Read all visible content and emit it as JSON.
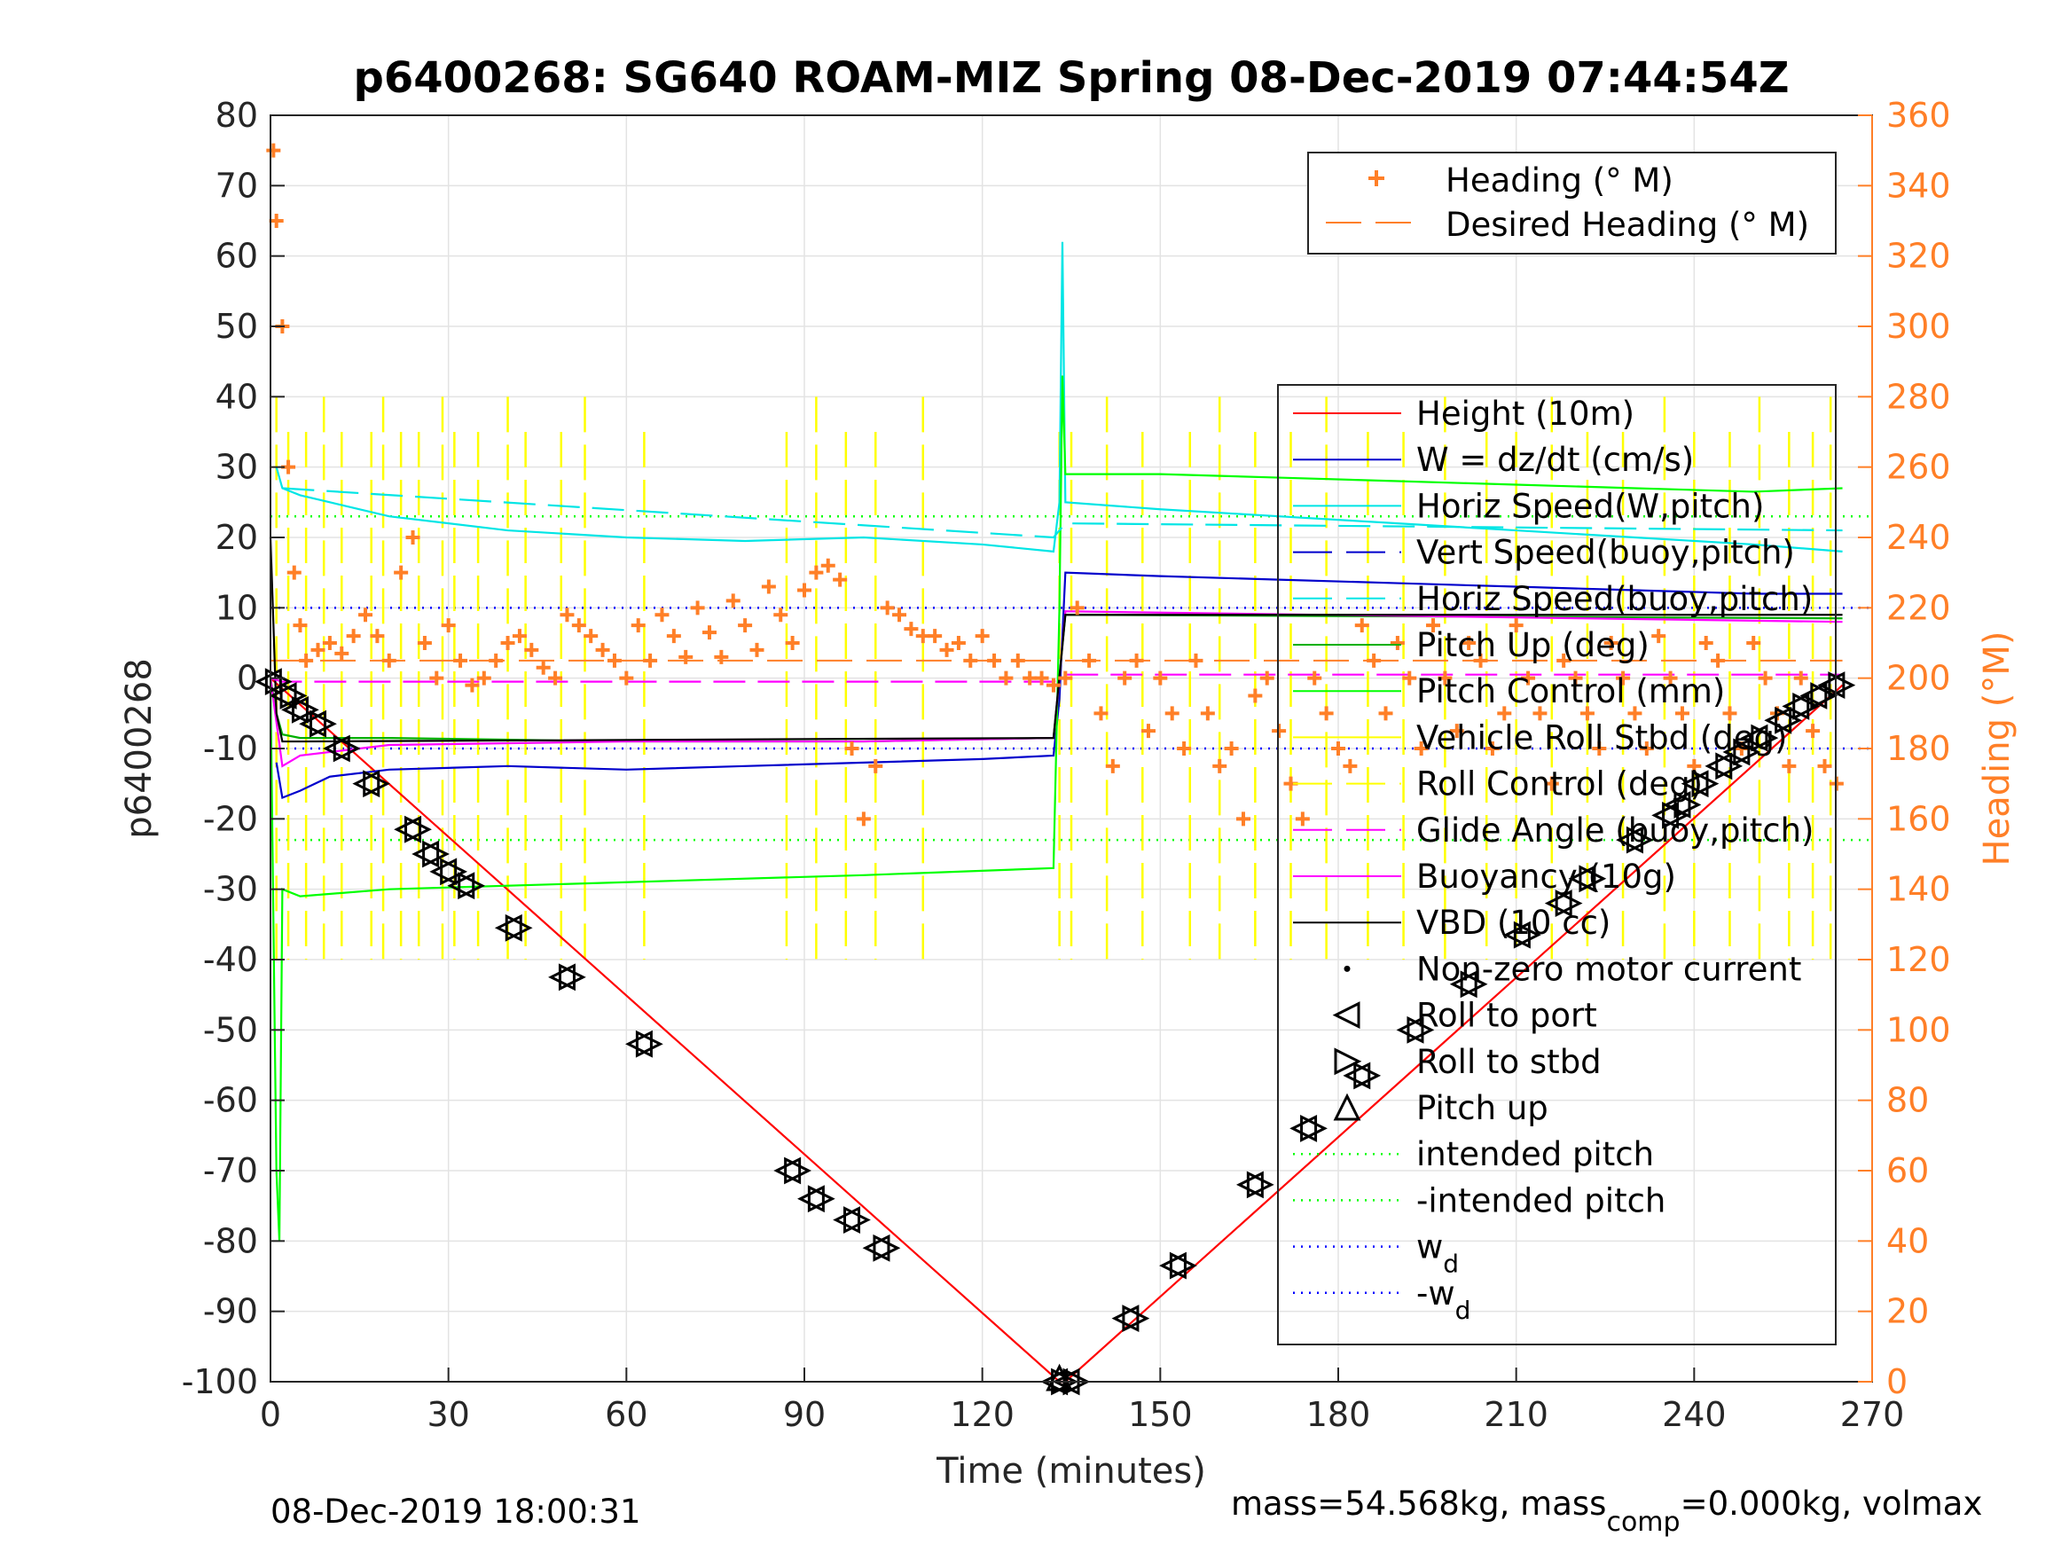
{
  "chart_data": {
    "type": "line",
    "title": "p6400268: SG640 ROAM-MIZ Spring 08-Dec-2019 07:44:54Z",
    "xlabel": "Time (minutes)",
    "ylabel": "p6400268",
    "y2label": "Heading (°M)",
    "xlim": [
      0,
      270
    ],
    "ylim": [
      -100,
      80
    ],
    "y2lim": [
      0,
      360
    ],
    "xticks": [
      "0",
      "30",
      "60",
      "90",
      "120",
      "150",
      "180",
      "210",
      "240",
      "270"
    ],
    "yticks": [
      "80",
      "70",
      "60",
      "50",
      "40",
      "30",
      "20",
      "10",
      "0",
      "-10",
      "-20",
      "-30",
      "-40",
      "-50",
      "-60",
      "-70",
      "-80",
      "-90",
      "-100"
    ],
    "y2ticks": [
      "360",
      "340",
      "320",
      "300",
      "280",
      "260",
      "240",
      "220",
      "200",
      "180",
      "160",
      "140",
      "120",
      "100",
      "80",
      "60",
      "40",
      "20",
      "0"
    ],
    "grid": true,
    "legend_top": [
      {
        "name": "Heading (° M)",
        "color": "#ff7f27",
        "style": "plus"
      },
      {
        "name": "Desired Heading (° M)",
        "color": "#ff7f27",
        "style": "dash"
      }
    ],
    "legend_main": [
      {
        "name": "Height (10m)",
        "color": "#ff0000",
        "style": "solid"
      },
      {
        "name": "W = dz/dt (cm/s)",
        "color": "#0000cc",
        "style": "solid"
      },
      {
        "name": "Horiz Speed(W,pitch)",
        "color": "#00e5e5",
        "style": "solid"
      },
      {
        "name": "Vert Speed(buoy,pitch)",
        "color": "#0000cc",
        "style": "dash"
      },
      {
        "name": "Horiz Speed(buoy,pitch)",
        "color": "#00e5e5",
        "style": "dash"
      },
      {
        "name": "Pitch Up (deg)",
        "color": "#00b000",
        "style": "solid"
      },
      {
        "name": "Pitch Control (mm)",
        "color": "#00ff00",
        "style": "solid"
      },
      {
        "name": "Vehicle Roll Stbd (deg)",
        "color": "#ffff00",
        "style": "solid"
      },
      {
        "name": "Roll Control (deg)",
        "color": "#ffff00",
        "style": "dash"
      },
      {
        "name": "Glide Angle (buoy,pitch)",
        "color": "#ff00ff",
        "style": "dash"
      },
      {
        "name": "Buoyancy (10g)",
        "color": "#ff00ff",
        "style": "solid"
      },
      {
        "name": "VBD (10 cc)",
        "color": "#000000",
        "style": "solid"
      },
      {
        "name": "Non-zero motor current",
        "color": "#000000",
        "style": "dot"
      },
      {
        "name": "Roll to port",
        "color": "#000000",
        "style": "triangle-left"
      },
      {
        "name": "Roll to stbd",
        "color": "#000000",
        "style": "triangle-right"
      },
      {
        "name": "Pitch up",
        "color": "#000000",
        "style": "triangle-up"
      },
      {
        "name": "intended pitch",
        "color": "#00ff00",
        "style": "dotted"
      },
      {
        "name": "-intended pitch",
        "color": "#00ff00",
        "style": "dotted"
      },
      {
        "name": "w",
        "sub": "d",
        "color": "#0000ff",
        "style": "dotted"
      },
      {
        "name": "-w",
        "sub": "d",
        "color": "#0000ff",
        "style": "dotted"
      }
    ],
    "series": [
      {
        "name": "Height (10m)",
        "color": "#ff0000",
        "x": [
          0,
          133,
          134,
          265
        ],
        "y": [
          0,
          -100,
          -100,
          -1
        ]
      },
      {
        "name": "W = dz/dt (cm/s)",
        "color": "#0000cc",
        "x": [
          1,
          2,
          5,
          10,
          20,
          40,
          60,
          80,
          100,
          120,
          132,
          133,
          134,
          150,
          170,
          190,
          210,
          230,
          250,
          265
        ],
        "y": [
          -12,
          -17,
          -16,
          -14,
          -13,
          -12.5,
          -13,
          -12.5,
          -12,
          -11.5,
          -11,
          -3,
          15,
          14.5,
          14,
          13.5,
          13,
          12.5,
          12,
          12
        ]
      },
      {
        "name": "Horiz Speed(W,pitch)",
        "color": "#00e5e5",
        "x": [
          1,
          2,
          5,
          10,
          20,
          40,
          60,
          80,
          100,
          120,
          132,
          133,
          133.5,
          134,
          150,
          170,
          190,
          210,
          230,
          250,
          265
        ],
        "y": [
          30,
          27,
          26,
          25,
          23,
          21,
          20,
          19.5,
          20,
          19,
          18,
          25,
          62,
          25,
          24,
          23,
          22,
          21,
          20,
          19,
          18
        ]
      },
      {
        "name": "Pitch Up (deg)",
        "color": "#00b000",
        "x": [
          0,
          1,
          2,
          5,
          20,
          60,
          100,
          132,
          133,
          134,
          265
        ],
        "y": [
          0,
          -5,
          -8,
          -8.5,
          -8.5,
          -9,
          -9,
          -8.5,
          0,
          9,
          8.5
        ]
      },
      {
        "name": "Pitch Control (mm)",
        "color": "#00ff00",
        "x": [
          0,
          1,
          1.5,
          2,
          5,
          20,
          60,
          100,
          132,
          133,
          133.5,
          134,
          150,
          170,
          190,
          210,
          230,
          250,
          265
        ],
        "y": [
          0,
          -70,
          -80,
          -30,
          -31,
          -30,
          -29,
          -28,
          -27,
          10,
          43,
          29,
          29,
          28.5,
          28,
          27.5,
          27,
          26.5,
          27
        ]
      },
      {
        "name": "Buoyancy (10g)",
        "color": "#ff00ff",
        "x": [
          0,
          2,
          5,
          20,
          60,
          100,
          132,
          133,
          134,
          265
        ],
        "y": [
          0,
          -12.5,
          -11,
          -9.5,
          -9,
          -9,
          -8.5,
          0,
          9.5,
          8
        ]
      },
      {
        "name": "VBD (10 cc)",
        "color": "#000000",
        "x": [
          0,
          1,
          2,
          5,
          132,
          134,
          265
        ],
        "y": [
          20,
          -5,
          -9,
          -9,
          -8.5,
          9,
          9
        ]
      },
      {
        "name": "Glide Angle (buoy,pitch)",
        "color": "#ff00ff",
        "x": [
          0,
          2,
          132,
          134,
          265
        ],
        "y": [
          0,
          -0.5,
          -0.5,
          0.5,
          0.5
        ]
      },
      {
        "name": "Horiz Speed(buoy,pitch)",
        "color": "#00e5e5",
        "x": [
          2,
          132,
          134,
          265
        ],
        "y": [
          27,
          20,
          22,
          21
        ]
      }
    ],
    "heading": {
      "name": "Heading (° M)",
      "axis": "right",
      "x": [
        0.5,
        1,
        2,
        3,
        4,
        5,
        6,
        8,
        10,
        12,
        14,
        16,
        18,
        20,
        22,
        24,
        26,
        28,
        30,
        32,
        34,
        36,
        38,
        40,
        42,
        44,
        46,
        48,
        50,
        52,
        54,
        56,
        58,
        60,
        62,
        64,
        66,
        68,
        70,
        72,
        74,
        76,
        78,
        80,
        82,
        84,
        86,
        88,
        90,
        92,
        94,
        96,
        98,
        100,
        102,
        104,
        106,
        108,
        110,
        112,
        114,
        116,
        118,
        120,
        122,
        124,
        126,
        128,
        130,
        132,
        134,
        136,
        138,
        140,
        142,
        144,
        146,
        148,
        150,
        152,
        154,
        156,
        158,
        160,
        162,
        164,
        166,
        168,
        170,
        172,
        174,
        176,
        178,
        180,
        182,
        184,
        186,
        188,
        190,
        192,
        194,
        196,
        198,
        200,
        202,
        204,
        206,
        208,
        210,
        212,
        214,
        216,
        218,
        220,
        222,
        224,
        226,
        228,
        230,
        232,
        234,
        236,
        238,
        240,
        242,
        244,
        246,
        248,
        250,
        252,
        254,
        256,
        258,
        260,
        262,
        264
      ],
      "y": [
        350,
        330,
        300,
        260,
        230,
        215,
        205,
        208,
        210,
        207,
        212,
        218,
        212,
        205,
        230,
        240,
        210,
        200,
        215,
        205,
        198,
        200,
        205,
        210,
        212,
        208,
        203,
        200,
        218,
        215,
        212,
        208,
        205,
        200,
        215,
        205,
        218,
        212,
        206,
        220,
        213,
        206,
        222,
        215,
        208,
        226,
        218,
        210,
        225,
        230,
        232,
        228,
        180,
        160,
        175,
        220,
        218,
        214,
        212,
        212,
        208,
        210,
        205,
        212,
        205,
        200,
        205,
        200,
        200,
        198,
        200,
        220,
        205,
        190,
        175,
        200,
        205,
        185,
        200,
        190,
        180,
        205,
        190,
        175,
        180,
        160,
        195,
        200,
        185,
        170,
        160,
        200,
        190,
        180,
        175,
        215,
        205,
        190,
        210,
        200,
        180,
        215,
        200,
        185,
        210,
        205,
        180,
        190,
        215,
        200,
        190,
        170,
        205,
        200,
        190,
        180,
        210,
        200,
        190,
        180,
        212,
        200,
        190,
        175,
        210,
        205,
        190,
        180,
        210,
        200,
        190,
        175,
        200,
        185,
        175,
        170
      ]
    },
    "desired_heading": {
      "name": "Desired Heading (° M)",
      "axis": "right",
      "x": [
        0,
        265
      ],
      "y": [
        205,
        205
      ]
    },
    "reference_lines": [
      {
        "name": "intended pitch",
        "y": 23,
        "color": "#00ff00"
      },
      {
        "name": "-intended pitch",
        "y": -23,
        "color": "#00ff00"
      },
      {
        "name": "w_d",
        "y": 10,
        "color": "#0000ff"
      },
      {
        "name": "-w_d",
        "y": -10,
        "color": "#0000ff"
      }
    ],
    "markers": {
      "x": [
        0.5,
        3,
        5,
        8,
        12,
        17,
        24,
        27,
        30,
        33,
        41,
        50,
        63,
        88,
        92,
        98,
        103,
        133,
        135,
        145,
        153,
        166,
        175,
        184,
        193,
        202,
        211,
        218,
        222,
        230,
        236,
        238,
        241,
        245,
        248,
        251,
        255,
        258,
        261,
        264
      ],
      "y": [
        -0.5,
        -2.5,
        -4.5,
        -6.5,
        -10,
        -15,
        -21.5,
        -25,
        -27.5,
        -29.5,
        -35.5,
        -42.5,
        -52,
        -70,
        -74,
        -77,
        -81,
        -100,
        -100,
        -91,
        -83.5,
        -72,
        -64,
        -56.5,
        -50,
        -43.5,
        -36.5,
        -32,
        -28.5,
        -23,
        -19.5,
        -18,
        -15,
        -12.5,
        -10.5,
        -8.5,
        -6,
        -4,
        -2.5,
        -1
      ]
    },
    "roll_control_spikes_x": [
      1,
      3,
      6,
      9,
      12,
      17,
      19,
      22,
      25,
      29,
      31,
      35,
      40,
      43,
      49,
      53,
      63,
      87,
      92,
      97,
      102,
      110,
      133,
      135,
      141,
      147,
      155,
      160,
      166,
      172,
      178,
      185,
      191,
      198,
      205,
      210,
      216,
      222,
      228,
      235,
      240,
      246,
      251,
      256,
      260,
      263
    ]
  },
  "footer": {
    "left": "08-Dec-2019 18:00:31",
    "right_prefix": "mass=54.568kg, mass",
    "right_sub": "comp",
    "right_suffix": "=0.000kg, volmax"
  }
}
